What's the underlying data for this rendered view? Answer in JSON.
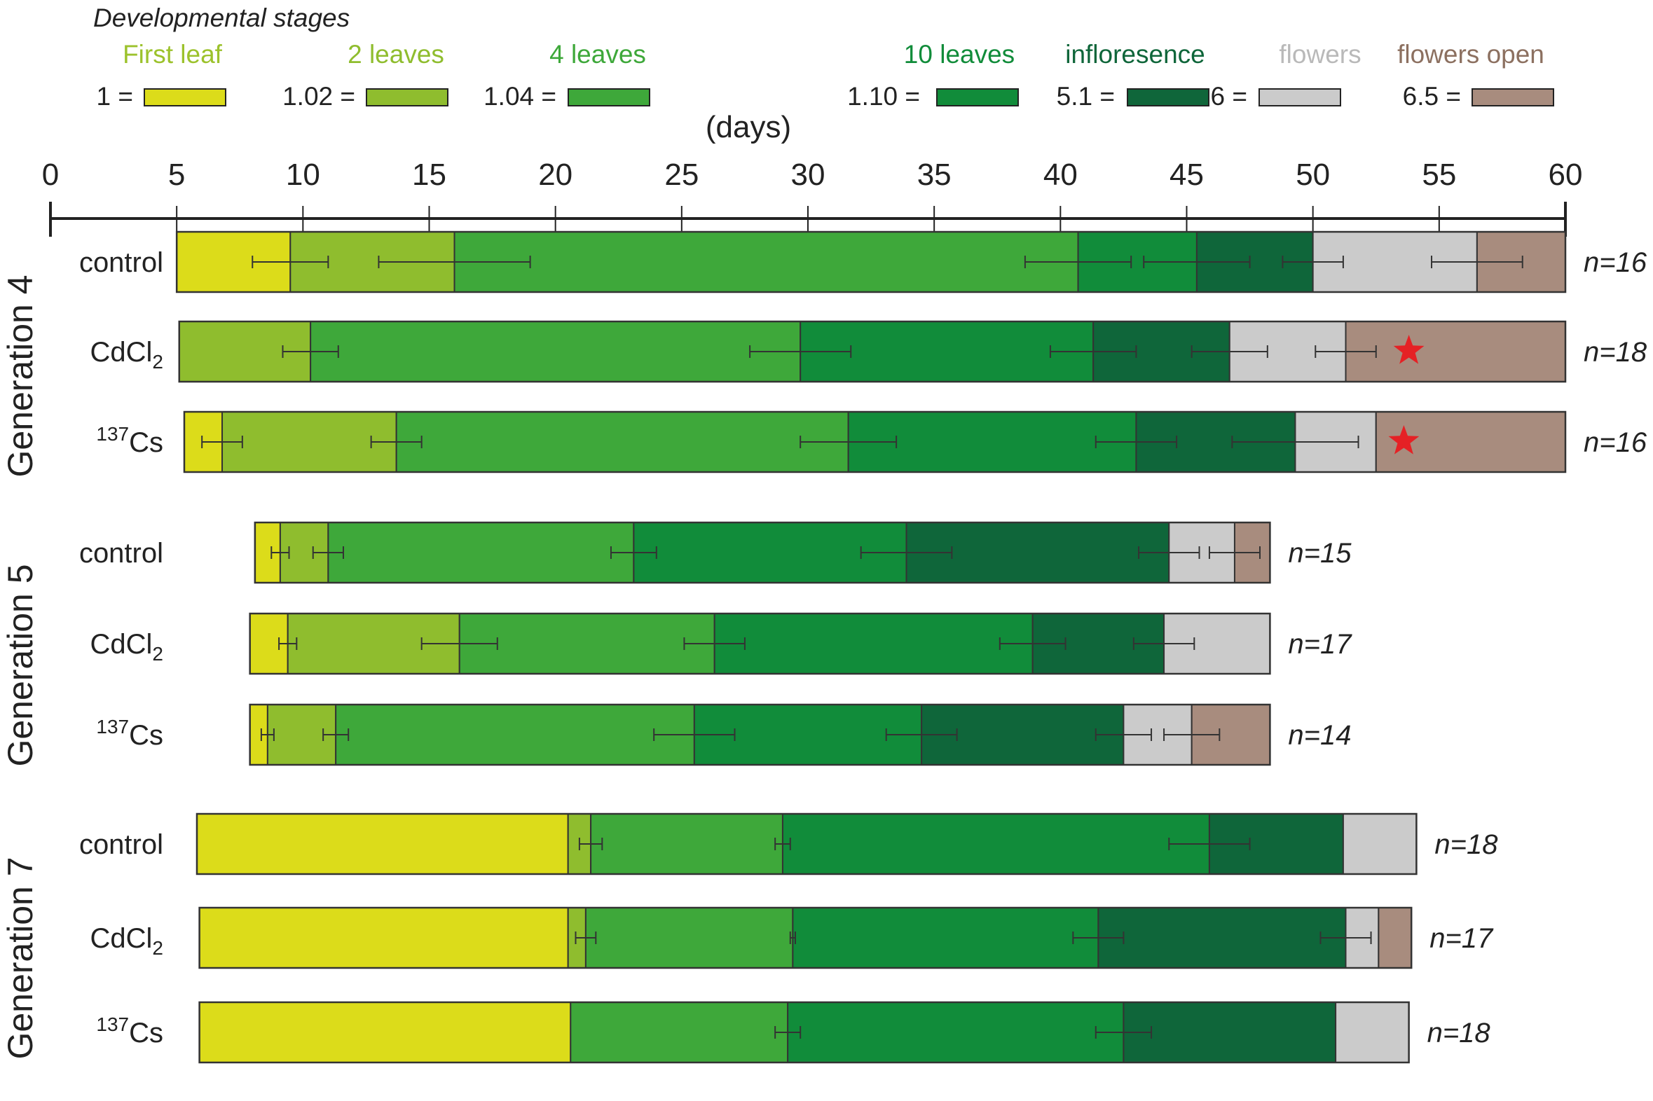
{
  "chart_data": {
    "type": "bar",
    "subtype": "horizontal-stacked-timeline",
    "legend": {
      "title": "Developmental stages",
      "items": [
        {
          "key": "first_leaf",
          "name": "First leaf",
          "code": "1 =",
          "color": "#dcdc1a",
          "text_color": "#9cc22c"
        },
        {
          "key": "two_leaves",
          "name": "2 leaves",
          "code": "1.02 =",
          "color": "#8fbd2e",
          "text_color": "#8fbd2e"
        },
        {
          "key": "four_leaves",
          "name": "4 leaves",
          "code": "1.04 =",
          "color": "#3ea83a",
          "text_color": "#3ea83a"
        },
        {
          "key": "ten_leaves",
          "name": "10 leaves",
          "code": "1.10 =",
          "color": "#118c3a",
          "text_color": "#118c3a"
        },
        {
          "key": "inflorescence",
          "name": "infloresence",
          "code": "5.1 =",
          "color": "#0f663a",
          "text_color": "#0f663a"
        },
        {
          "key": "flowers",
          "name": "flowers",
          "code": "6 =",
          "color": "#cbcbcb",
          "text_color": "#b9b9b9"
        },
        {
          "key": "flowers_open",
          "name": "flowers open",
          "code": "6.5 =",
          "color": "#a88c7e",
          "text_color": "#8c7060"
        }
      ]
    },
    "xlabel": "(days)",
    "xlim": [
      0,
      60
    ],
    "xticks": [
      0,
      5,
      10,
      15,
      20,
      25,
      30,
      35,
      40,
      45,
      50,
      55,
      60
    ],
    "groups": [
      {
        "name": "Generation 4",
        "rows": [
          {
            "label": "control",
            "label_sup": "",
            "label_main": "control",
            "label_sub": "",
            "n": "n=16",
            "start": 5.0,
            "end": 60.0,
            "star": null,
            "segments": [
              {
                "stage": "first_leaf",
                "end": 9.5,
                "err": 1.5
              },
              {
                "stage": "two_leaves",
                "end": 16.0,
                "err": 3.0
              },
              {
                "stage": "four_leaves",
                "end": 40.7,
                "err": 2.1
              },
              {
                "stage": "ten_leaves",
                "end": 45.4,
                "err": 2.1
              },
              {
                "stage": "inflorescence",
                "end": 50.0,
                "err": 1.2
              },
              {
                "stage": "flowers",
                "end": 56.5,
                "err": 1.8
              },
              {
                "stage": "flowers_open",
                "end": 60.0,
                "err": null
              }
            ]
          },
          {
            "label": "CdCl2",
            "label_sup": "",
            "label_main": "CdCl",
            "label_sub": "2",
            "n": "n=18",
            "start": 5.1,
            "end": 60.0,
            "star": 53.8,
            "segments": [
              {
                "stage": "two_leaves",
                "end": 10.3,
                "err": 1.1
              },
              {
                "stage": "four_leaves",
                "end": 29.7,
                "err": 2.0
              },
              {
                "stage": "ten_leaves",
                "end": 41.3,
                "err": 1.7
              },
              {
                "stage": "inflorescence",
                "end": 46.7,
                "err": 1.5
              },
              {
                "stage": "flowers",
                "end": 51.3,
                "err": 1.2
              },
              {
                "stage": "flowers_open",
                "end": 60.0,
                "err": null
              }
            ]
          },
          {
            "label": "137Cs",
            "label_sup": "137",
            "label_main": "Cs",
            "label_sub": "",
            "n": "n=16",
            "start": 5.3,
            "end": 60.0,
            "star": 53.6,
            "segments": [
              {
                "stage": "first_leaf",
                "end": 6.8,
                "err": 0.8
              },
              {
                "stage": "two_leaves",
                "end": 13.7,
                "err": 1.0
              },
              {
                "stage": "four_leaves",
                "end": 31.6,
                "err": 1.9
              },
              {
                "stage": "ten_leaves",
                "end": 43.0,
                "err": 1.6
              },
              {
                "stage": "inflorescence",
                "end": 49.3,
                "err": 2.5
              },
              {
                "stage": "flowers",
                "end": 52.5,
                "err": null
              },
              {
                "stage": "flowers_open",
                "end": 60.0,
                "err": null
              }
            ]
          }
        ]
      },
      {
        "name": "Generation 5",
        "rows": [
          {
            "label": "control",
            "label_sup": "",
            "label_main": "control",
            "label_sub": "",
            "n": "n=15",
            "start": 8.1,
            "end": 48.3,
            "star": null,
            "segments": [
              {
                "stage": "first_leaf",
                "end": 9.1,
                "err": 0.35
              },
              {
                "stage": "two_leaves",
                "end": 11.0,
                "err": 0.6
              },
              {
                "stage": "four_leaves",
                "end": 23.1,
                "err": 0.9
              },
              {
                "stage": "ten_leaves",
                "end": 33.9,
                "err": 1.8
              },
              {
                "stage": "inflorescence",
                "end": 44.3,
                "err": 1.2
              },
              {
                "stage": "flowers",
                "end": 46.9,
                "err": 1.0
              },
              {
                "stage": "flowers_open",
                "end": 48.3,
                "err": null
              }
            ]
          },
          {
            "label": "CdCl2",
            "label_sup": "",
            "label_main": "CdCl",
            "label_sub": "2",
            "n": "n=17",
            "start": 7.9,
            "end": 48.3,
            "star": null,
            "segments": [
              {
                "stage": "first_leaf",
                "end": 9.4,
                "err": 0.35
              },
              {
                "stage": "two_leaves",
                "end": 16.2,
                "err": 1.5
              },
              {
                "stage": "four_leaves",
                "end": 26.3,
                "err": 1.2
              },
              {
                "stage": "ten_leaves",
                "end": 38.9,
                "err": 1.3
              },
              {
                "stage": "inflorescence",
                "end": 44.1,
                "err": 1.2
              },
              {
                "stage": "flowers",
                "end": 48.3,
                "err": null
              }
            ]
          },
          {
            "label": "137Cs",
            "label_sup": "137",
            "label_main": "Cs",
            "label_sub": "",
            "n": "n=14",
            "start": 7.9,
            "end": 48.3,
            "star": null,
            "segments": [
              {
                "stage": "first_leaf",
                "end": 8.6,
                "err": 0.25
              },
              {
                "stage": "two_leaves",
                "end": 11.3,
                "err": 0.5
              },
              {
                "stage": "four_leaves",
                "end": 25.5,
                "err": 1.6
              },
              {
                "stage": "ten_leaves",
                "end": 34.5,
                "err": 1.4
              },
              {
                "stage": "inflorescence",
                "end": 42.5,
                "err": 1.1
              },
              {
                "stage": "flowers",
                "end": 45.2,
                "err": 1.1
              },
              {
                "stage": "flowers_open",
                "end": 48.3,
                "err": null
              }
            ]
          }
        ]
      },
      {
        "name": "Generation 7",
        "rows": [
          {
            "label": "control",
            "label_sup": "",
            "label_main": "control",
            "label_sub": "",
            "n": "n=18",
            "start": 5.8,
            "end": 54.1,
            "star": null,
            "segments": [
              {
                "stage": "first_leaf",
                "end": 20.5,
                "err": null
              },
              {
                "stage": "two_leaves",
                "end": 21.4,
                "err": 0.45
              },
              {
                "stage": "four_leaves",
                "end": 29.0,
                "err": 0.3
              },
              {
                "stage": "ten_leaves",
                "end": 45.9,
                "err": 1.6
              },
              {
                "stage": "inflorescence",
                "end": 51.2,
                "err": null
              },
              {
                "stage": "flowers",
                "end": 54.1,
                "err": null
              }
            ]
          },
          {
            "label": "CdCl2",
            "label_sup": "",
            "label_main": "CdCl",
            "label_sub": "2",
            "n": "n=17",
            "start": 5.9,
            "end": 53.9,
            "star": null,
            "segments": [
              {
                "stage": "first_leaf",
                "end": 20.5,
                "err": null
              },
              {
                "stage": "two_leaves",
                "end": 21.2,
                "err": 0.4
              },
              {
                "stage": "four_leaves",
                "end": 29.4,
                "err": 0.1
              },
              {
                "stage": "ten_leaves",
                "end": 41.5,
                "err": 1.0
              },
              {
                "stage": "inflorescence",
                "end": 51.3,
                "err": 1.0
              },
              {
                "stage": "flowers",
                "end": 52.6,
                "err": null
              },
              {
                "stage": "flowers_open",
                "end": 53.9,
                "err": null
              }
            ]
          },
          {
            "label": "137Cs",
            "label_sup": "137",
            "label_main": "Cs",
            "label_sub": "",
            "n": "n=18",
            "start": 5.9,
            "end": 53.8,
            "star": null,
            "segments": [
              {
                "stage": "first_leaf",
                "end": 20.6,
                "err": null
              },
              {
                "stage": "four_leaves",
                "end": 29.2,
                "err": 0.5
              },
              {
                "stage": "ten_leaves",
                "end": 42.5,
                "err": 1.1
              },
              {
                "stage": "inflorescence",
                "end": 50.9,
                "err": null
              },
              {
                "stage": "flowers",
                "end": 53.8,
                "err": null
              }
            ]
          }
        ]
      }
    ],
    "star_color": "#e52125"
  }
}
